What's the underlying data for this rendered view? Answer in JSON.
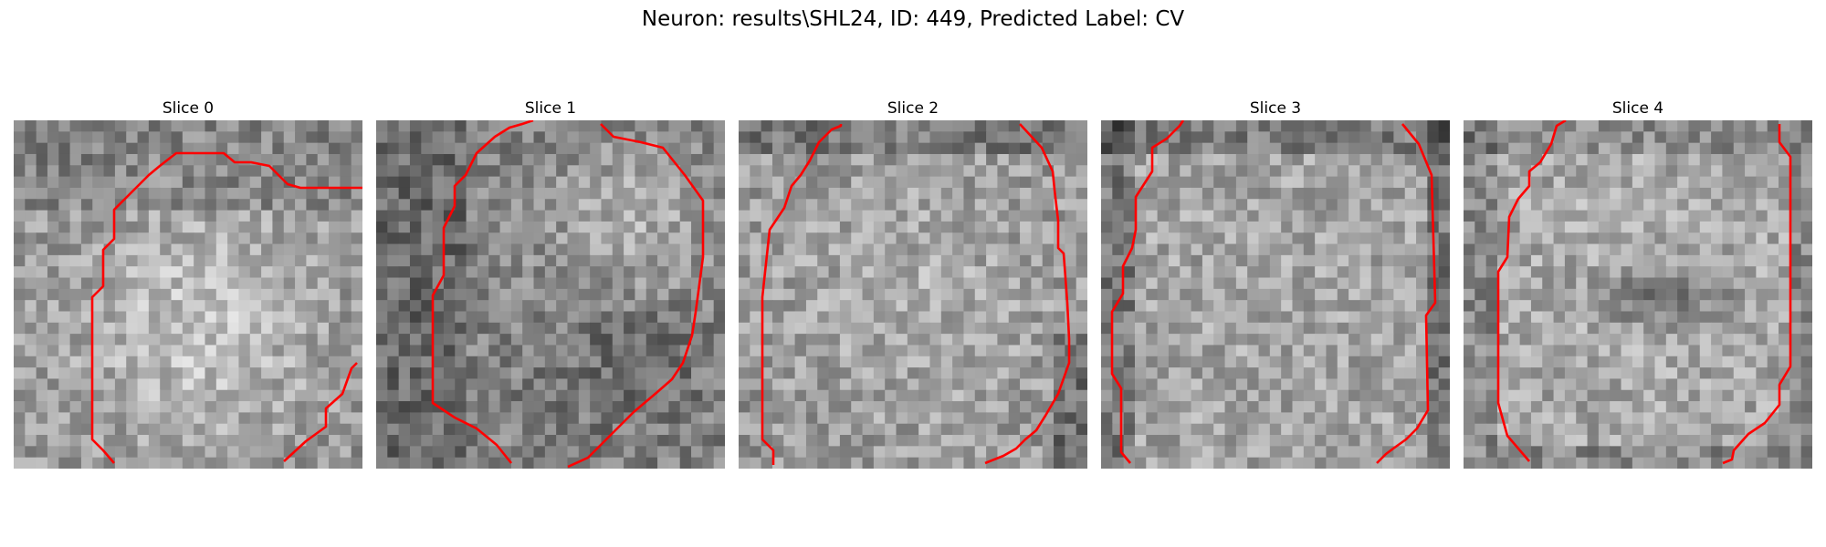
{
  "title": "Neuron: results\\SHL24, ID: 449, Predicted Label: CV",
  "contour_color": "#ff0000",
  "slices": [
    {
      "label": "Slice 0",
      "dark_regions": []
    },
    {
      "label": "Slice 1",
      "dark_regions": []
    },
    {
      "label": "Slice 2",
      "dark_regions": []
    },
    {
      "label": "Slice 3",
      "dark_regions": []
    },
    {
      "label": "Slice 4",
      "dark_regions": []
    }
  ]
}
